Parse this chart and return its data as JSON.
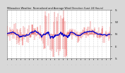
{
  "title": "Milwaukee Weather  Normalized and Average Wind Direction (Last 24 Hours)",
  "background_color": "#d8d8d8",
  "plot_bg_color": "#ffffff",
  "grid_color": "#aaaaaa",
  "bar_color": "#dd0000",
  "line_color": "#0000cc",
  "ylim": [
    -180,
    180
  ],
  "yticks": [
    -180,
    -90,
    0,
    90,
    180
  ],
  "ytick_labels": [
    "S",
    "E",
    "N",
    "W",
    "S"
  ],
  "n_points": 300,
  "seed": 7,
  "line_width": 0.9
}
